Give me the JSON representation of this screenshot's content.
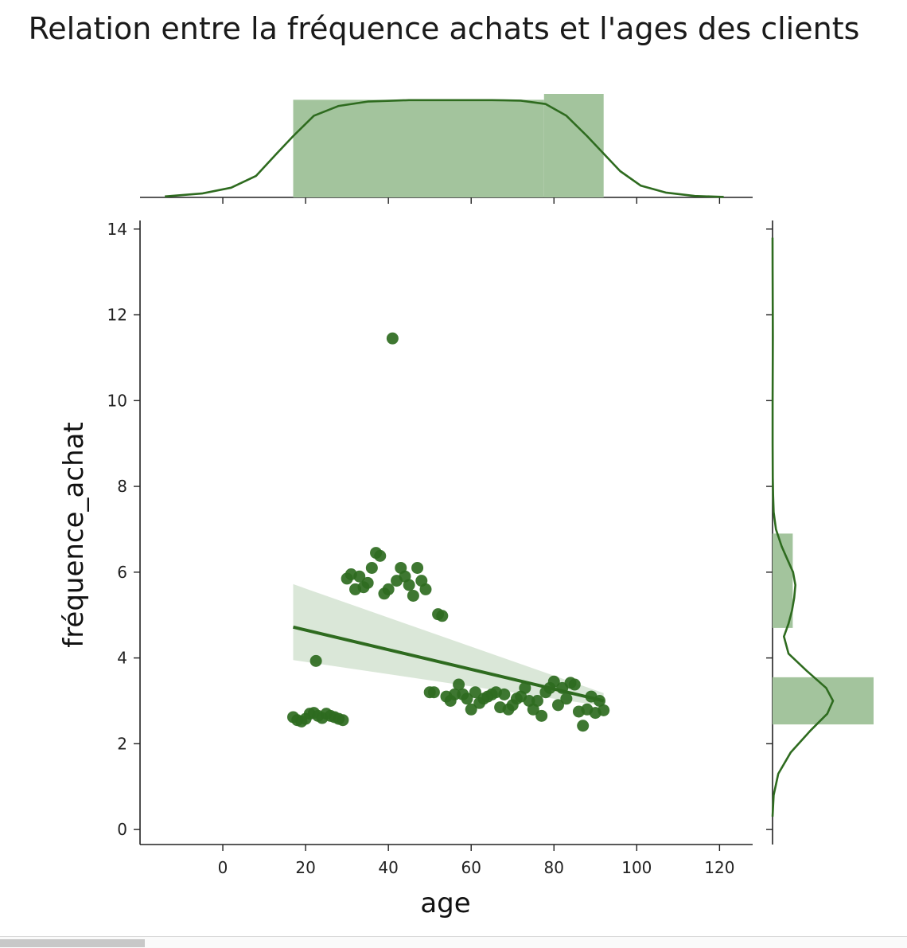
{
  "chart_data": {
    "type": "scatter",
    "title": "Relation entre la fréquence achats et l'ages des clients",
    "xlabel": "age",
    "ylabel": "fréquence_achat",
    "xlim": [
      -20,
      128
    ],
    "ylim": [
      -0.35,
      14.2
    ],
    "xticks": [
      0,
      20,
      40,
      60,
      80,
      100,
      120
    ],
    "yticks": [
      0,
      2,
      4,
      6,
      8,
      10,
      12,
      14
    ],
    "color": "#2e6b1f",
    "fill_color": "#a3c49d",
    "points": [
      [
        17,
        2.62
      ],
      [
        18,
        2.55
      ],
      [
        19,
        2.52
      ],
      [
        20,
        2.58
      ],
      [
        21,
        2.7
      ],
      [
        22,
        2.72
      ],
      [
        23,
        2.65
      ],
      [
        24,
        2.6
      ],
      [
        25,
        2.7
      ],
      [
        26,
        2.65
      ],
      [
        27,
        2.62
      ],
      [
        28,
        2.58
      ],
      [
        29,
        2.55
      ],
      [
        22.5,
        3.93
      ],
      [
        30,
        5.85
      ],
      [
        31,
        5.95
      ],
      [
        32,
        5.6
      ],
      [
        33,
        5.9
      ],
      [
        34,
        5.65
      ],
      [
        35,
        5.75
      ],
      [
        36,
        6.1
      ],
      [
        37,
        6.45
      ],
      [
        38,
        6.38
      ],
      [
        39,
        5.5
      ],
      [
        40,
        5.6
      ],
      [
        41,
        11.45
      ],
      [
        42,
        5.8
      ],
      [
        43,
        6.1
      ],
      [
        44,
        5.9
      ],
      [
        45,
        5.7
      ],
      [
        46,
        5.45
      ],
      [
        47,
        6.1
      ],
      [
        48,
        5.8
      ],
      [
        49,
        5.6
      ],
      [
        52,
        5.02
      ],
      [
        53,
        4.98
      ],
      [
        50,
        3.2
      ],
      [
        51,
        3.2
      ],
      [
        54,
        3.1
      ],
      [
        55,
        3.0
      ],
      [
        56,
        3.15
      ],
      [
        57,
        3.38
      ],
      [
        58,
        3.15
      ],
      [
        59,
        3.05
      ],
      [
        60,
        2.8
      ],
      [
        61,
        3.2
      ],
      [
        62,
        2.95
      ],
      [
        63,
        3.05
      ],
      [
        64,
        3.1
      ],
      [
        65,
        3.15
      ],
      [
        66,
        3.2
      ],
      [
        67,
        2.85
      ],
      [
        68,
        3.15
      ],
      [
        69,
        2.8
      ],
      [
        70,
        2.9
      ],
      [
        71,
        3.05
      ],
      [
        72,
        3.1
      ],
      [
        73,
        3.3
      ],
      [
        74,
        3.0
      ],
      [
        75,
        2.8
      ],
      [
        76,
        3.0
      ],
      [
        77,
        2.65
      ],
      [
        78,
        3.2
      ],
      [
        79,
        3.3
      ],
      [
        80,
        3.45
      ],
      [
        81,
        2.9
      ],
      [
        82,
        3.3
      ],
      [
        83,
        3.05
      ],
      [
        84,
        3.42
      ],
      [
        85,
        3.38
      ],
      [
        86,
        2.75
      ],
      [
        87,
        2.42
      ],
      [
        88,
        2.8
      ],
      [
        89,
        3.1
      ],
      [
        90,
        2.72
      ],
      [
        91,
        3.0
      ],
      [
        92,
        2.78
      ]
    ],
    "regression": {
      "x": [
        17,
        92
      ],
      "y": [
        4.72,
        3.0
      ],
      "ci_lower": [
        3.95,
        2.88
      ],
      "ci_upper": [
        5.72,
        3.18
      ]
    },
    "marginal_x_hist": {
      "bins": [
        [
          17,
          77.6,
          1.0
        ],
        [
          77.6,
          92,
          1.06
        ]
      ]
    },
    "marginal_x_kde": {
      "x": [
        -14,
        -5,
        2,
        8,
        13,
        17,
        22,
        28,
        35,
        45,
        55,
        65,
        72,
        78,
        83,
        88,
        92,
        96,
        101,
        107,
        114,
        121
      ],
      "y": [
        0.01,
        0.04,
        0.1,
        0.22,
        0.45,
        0.63,
        0.84,
        0.94,
        0.985,
        1.0,
        1.0,
        1.0,
        0.995,
        0.96,
        0.84,
        0.63,
        0.45,
        0.27,
        0.12,
        0.05,
        0.015,
        0.005
      ]
    },
    "marginal_y_hist": {
      "bins": [
        [
          2.45,
          3.55,
          1.0
        ],
        [
          4.7,
          6.9,
          0.2
        ]
      ]
    },
    "marginal_y_kde": {
      "y": [
        0.3,
        0.8,
        1.3,
        1.8,
        2.3,
        2.7,
        3.0,
        3.3,
        3.7,
        4.1,
        4.5,
        4.8,
        5.1,
        5.4,
        5.7,
        6.0,
        6.3,
        6.6,
        7.0,
        7.4,
        7.8,
        8.2,
        9.0,
        10.0,
        11.0,
        11.5,
        12.0,
        13.0,
        13.8
      ],
      "x": [
        0.0,
        0.01,
        0.05,
        0.16,
        0.33,
        0.48,
        0.53,
        0.47,
        0.3,
        0.14,
        0.1,
        0.14,
        0.17,
        0.19,
        0.2,
        0.18,
        0.13,
        0.08,
        0.03,
        0.01,
        0.005,
        0.002,
        0.001,
        0.001,
        0.002,
        0.003,
        0.002,
        0.001,
        0.0
      ]
    }
  }
}
